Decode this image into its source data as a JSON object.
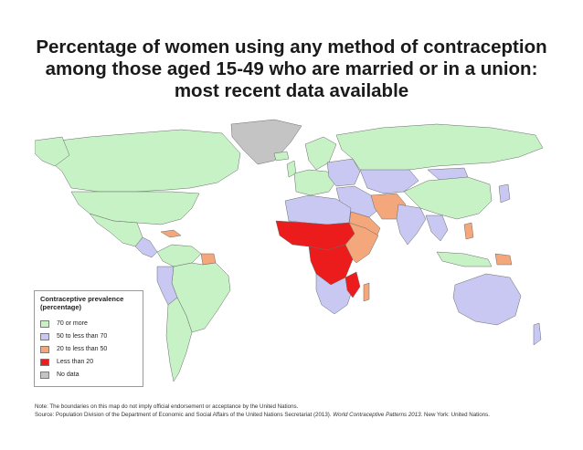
{
  "title": {
    "line1": "Percentage of women using any method of contraception",
    "line2": "among those aged 15-49 who are married or in a union:",
    "line3": "most recent data available"
  },
  "colors": {
    "seventy_plus": "#c6f2c6",
    "fifty_to_seventy": "#c8c8f2",
    "twenty_to_fifty": "#f3a77a",
    "less_than_twenty": "#ec1c1c",
    "no_data": "#c4c4c4",
    "ocean": "#ffffff",
    "border": "#6a6a6a"
  },
  "legend": {
    "title_line1": "Contraceptive prevalence",
    "title_line2": "(percentage)",
    "items": [
      {
        "label": "70 or more",
        "color_key": "seventy_plus"
      },
      {
        "label": "50 to less than 70",
        "color_key": "fifty_to_seventy"
      },
      {
        "label": "20 to less than 50",
        "color_key": "twenty_to_fifty"
      },
      {
        "label": "Less than 20",
        "color_key": "less_than_twenty"
      },
      {
        "label": "No data",
        "color_key": "no_data"
      }
    ]
  },
  "notes": {
    "note": "Note: The boundaries on this map do not imply official endorsement or acceptance by the United Nations.",
    "source_prefix": "Source: Population Division of the Department of Economic and Social Affairs of the United Nations Secretariat (2013).",
    "source_title": "World Contraceptive Patterns 2013",
    "source_suffix": ". New York: United Nations."
  }
}
